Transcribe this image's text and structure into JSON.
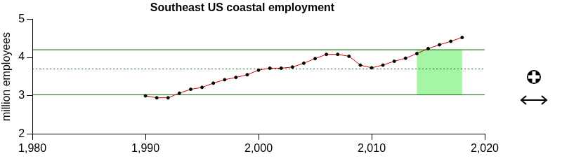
{
  "chart_data": {
    "type": "line",
    "title": "Southeast US coastal employment",
    "y_label": "million employees",
    "x": [
      1990,
      1991,
      1992,
      1993,
      1994,
      1995,
      1996,
      1997,
      1998,
      1999,
      2000,
      2001,
      2002,
      2003,
      2004,
      2005,
      2006,
      2007,
      2008,
      2009,
      2010,
      2011,
      2012,
      2013,
      2014,
      2015,
      2016,
      2017,
      2018
    ],
    "values": [
      3.0,
      2.95,
      2.95,
      3.07,
      3.17,
      3.22,
      3.33,
      3.42,
      3.48,
      3.55,
      3.67,
      3.72,
      3.72,
      3.75,
      3.85,
      3.97,
      4.08,
      4.08,
      4.03,
      3.8,
      3.73,
      3.8,
      3.9,
      3.98,
      4.1,
      4.23,
      4.33,
      4.42,
      4.52
    ],
    "color": "#cc0000",
    "marker": "circle",
    "xlim": [
      1980,
      2020
    ],
    "xticks": [
      1980,
      1990,
      2000,
      2010,
      2020
    ],
    "ylim": [
      2,
      5
    ],
    "yticks": [
      2,
      3,
      4,
      5
    ],
    "grid": false,
    "reference_lines": {
      "mean": 3.7,
      "upper": 4.2,
      "lower": 3.03
    },
    "highlight_x": [
      2014,
      2018
    ]
  }
}
